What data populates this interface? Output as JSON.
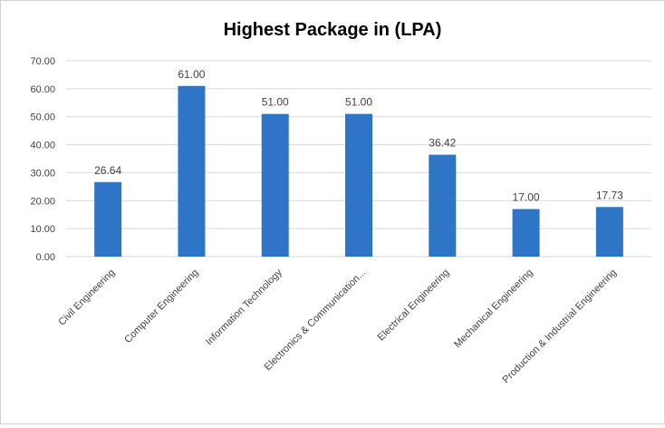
{
  "chart_data": {
    "type": "bar",
    "title": "Highest Package in (LPA)",
    "xlabel": "",
    "ylabel": "",
    "categories": [
      "Civil Engineering",
      "Computer Engineering",
      "Information Technology",
      "Electronics & Communication...",
      "Electrical Engineering",
      "Mechanical Engineering",
      "Production & Industrial Engineering"
    ],
    "values": [
      26.64,
      61.0,
      51.0,
      51.0,
      36.42,
      17.0,
      17.73
    ],
    "data_labels": [
      "26.64",
      "61.00",
      "51.00",
      "51.00",
      "36.42",
      "17.00",
      "17.73"
    ],
    "ylim": [
      0,
      70
    ],
    "yticks": [
      0,
      10,
      20,
      30,
      40,
      50,
      60,
      70
    ],
    "ytick_labels": [
      "0.00",
      "10.00",
      "20.00",
      "30.00",
      "40.00",
      "50.00",
      "60.00",
      "70.00"
    ],
    "grid": true,
    "legend": "none",
    "colors": {
      "bar": "#2E75C8",
      "grid": "#d9d9d9",
      "text": "#404040",
      "title": "#262626"
    }
  }
}
